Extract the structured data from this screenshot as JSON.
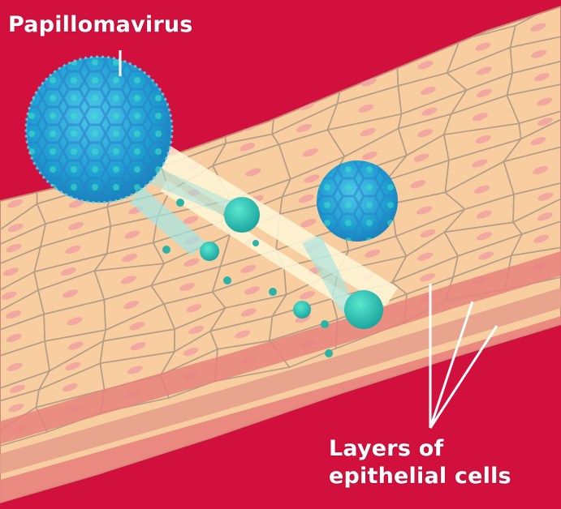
{
  "labels": {
    "virus": "Papillomavirus",
    "layers_line1": "Layers of",
    "layers_line2": "epithelial cells"
  },
  "colors": {
    "background": "#d2103e",
    "tissue": "#f8ceA0",
    "cell_outline": "#b99a82",
    "nucleus": "#f2a7a0",
    "basal_band": "#e8827c",
    "virus_fill": "#27a9d6",
    "virus_accent": "#3fe3c8",
    "label_text": "#ffffff"
  }
}
